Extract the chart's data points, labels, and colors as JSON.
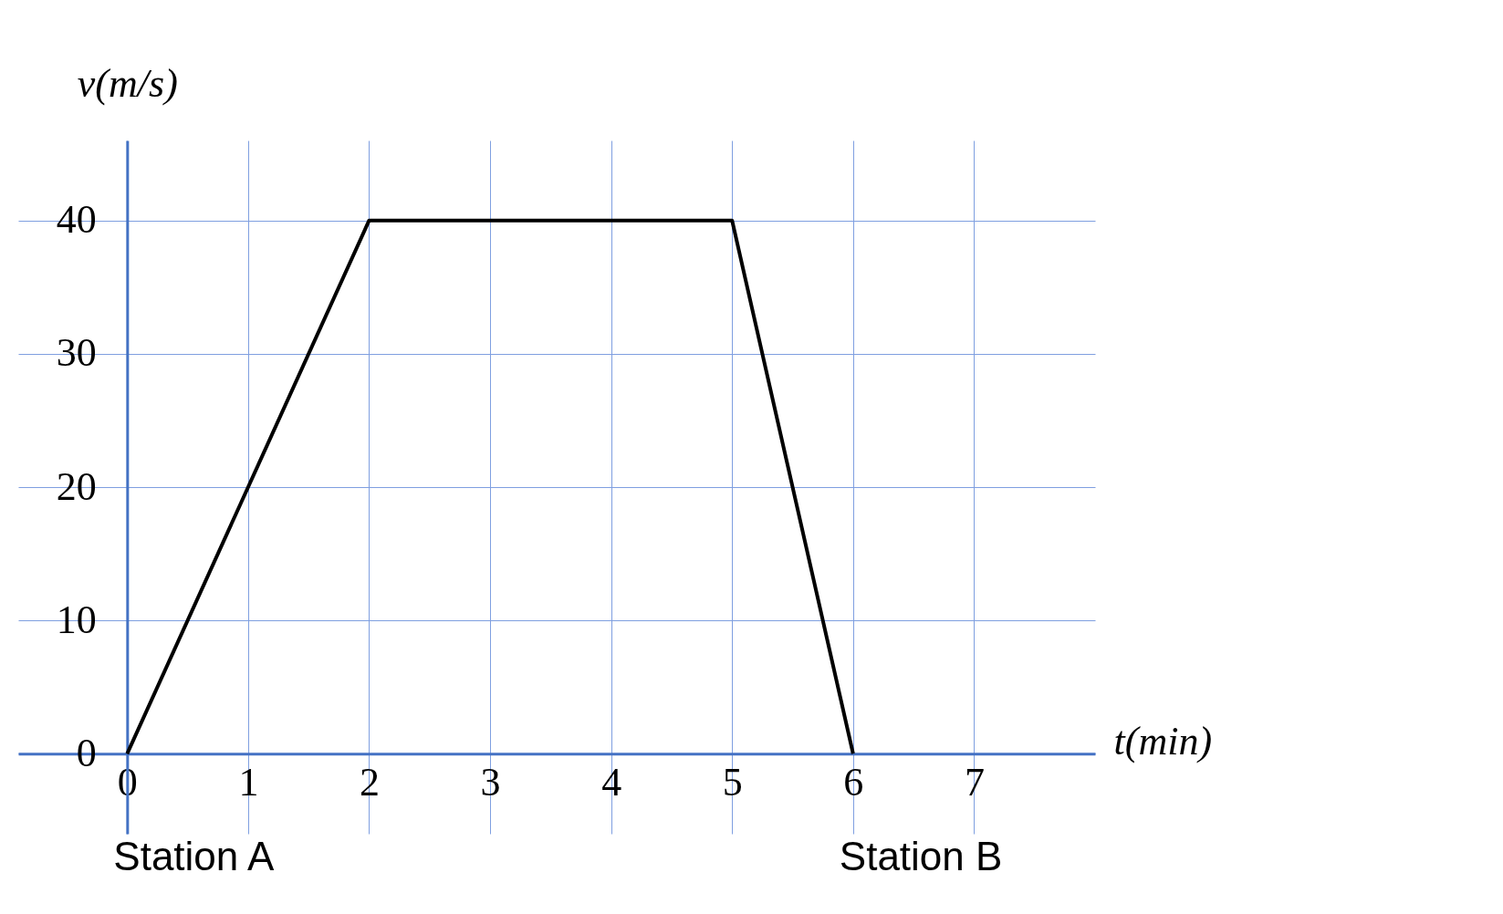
{
  "chart_data": {
    "type": "line",
    "xlabel": "t(min)",
    "ylabel": "v(m/s)",
    "x": [
      0,
      2,
      5,
      6
    ],
    "series": [
      {
        "color": "#000000",
        "values": [
          0,
          40,
          40,
          0
        ]
      }
    ],
    "xlim": [
      -0.9,
      8
    ],
    "ylim": [
      -6,
      46
    ],
    "xticks": [
      0,
      1,
      2,
      3,
      4,
      5,
      6,
      7
    ],
    "yticks": [
      0,
      10,
      20,
      30,
      40
    ],
    "grid": true,
    "marker": "none",
    "line_style": "solid",
    "annotations": [
      {
        "text": "Station A",
        "x": 0,
        "y": 0
      },
      {
        "text": "Station B",
        "x": 6,
        "y": 0
      }
    ]
  }
}
